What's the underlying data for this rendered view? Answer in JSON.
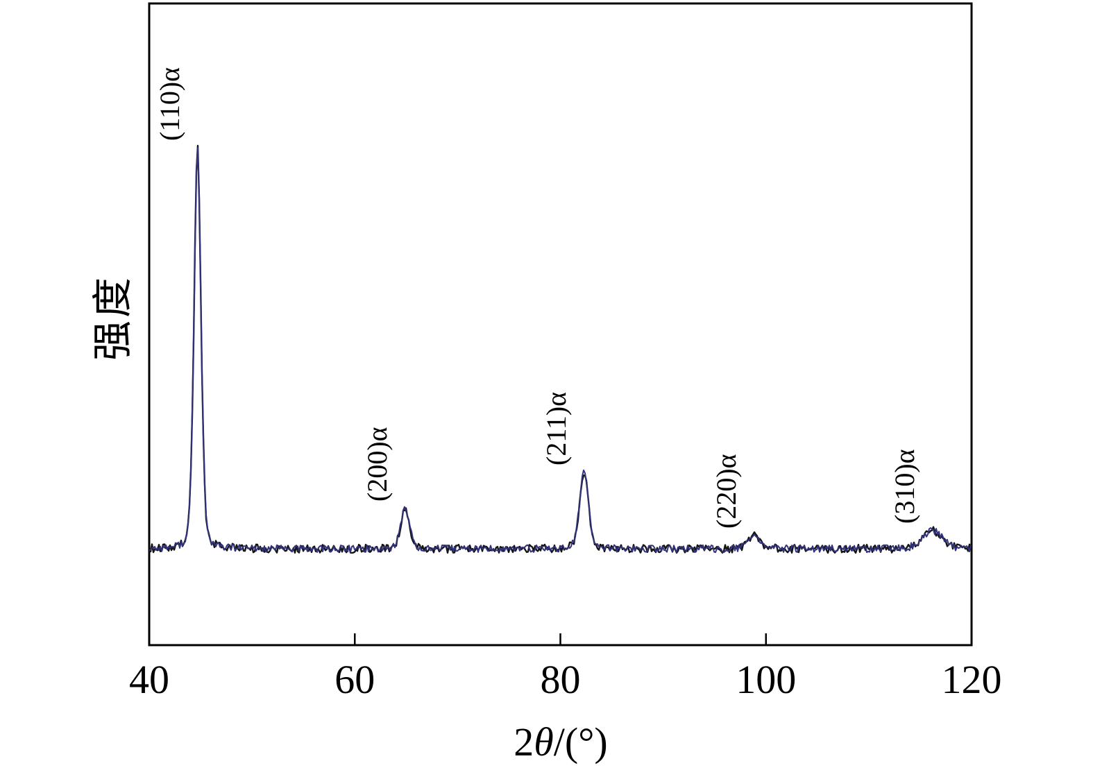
{
  "figure": {
    "background": "#ffffff",
    "description": "XRD diffraction pattern with alpha-phase peaks"
  },
  "chart_data": {
    "type": "line",
    "title": "",
    "xlabel": "2θ/(°)",
    "xlabel_parts": [
      {
        "text": "2",
        "italic": false
      },
      {
        "text": "θ",
        "italic": true
      },
      {
        "text": "/(°)",
        "italic": false
      }
    ],
    "ylabel": "强度",
    "xlim": [
      40,
      120
    ],
    "ylim": [
      0,
      1.6
    ],
    "x_ticks": [
      40,
      60,
      80,
      100,
      120
    ],
    "y_ticks": [],
    "grid": false,
    "legend": "none",
    "axis_color": "#000000",
    "trace_colors": [
      "#141414",
      "#32327c"
    ],
    "baseline_intensity": 0.24,
    "noise_amplitude": 0.009,
    "series": [
      {
        "name": "xrd-trace",
        "units": "arbitrary intensity"
      }
    ],
    "peaks": [
      {
        "label": "(110)α",
        "two_theta": 44.7,
        "height": 1.0,
        "width": 0.35
      },
      {
        "label": "(200)α",
        "two_theta": 64.9,
        "height": 0.1,
        "width": 0.45
      },
      {
        "label": "(211)α",
        "two_theta": 82.3,
        "height": 0.19,
        "width": 0.45
      },
      {
        "label": "(220)α",
        "two_theta": 98.9,
        "height": 0.034,
        "width": 0.6
      },
      {
        "label": "(310)α",
        "two_theta": 116.2,
        "height": 0.045,
        "width": 1.0
      }
    ]
  }
}
